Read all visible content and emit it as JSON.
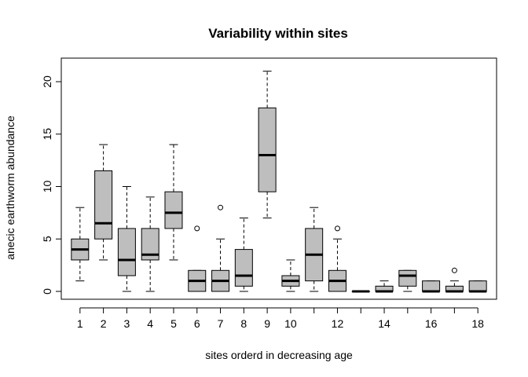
{
  "chart_data": {
    "type": "boxplot",
    "title": "Variability within sites",
    "xlabel": "sites orderd in decreasing age",
    "ylabel": "anecic earthworm abundance",
    "ylim": [
      -1,
      22.5
    ],
    "y_ticks": [
      0,
      5,
      10,
      15,
      20
    ],
    "x_tick_labels": [
      "1",
      "2",
      "3",
      "4",
      "5",
      "6",
      "7",
      "8",
      "9",
      "10",
      "12",
      "14",
      "16",
      "18"
    ],
    "x_tick_positions": [
      1,
      2,
      3,
      4,
      5,
      6,
      7,
      8,
      9,
      10,
      12,
      14,
      16,
      18
    ],
    "box_fill": "#bebebe",
    "boxes": [
      {
        "site": 1,
        "whisker_low": 1,
        "q1": 3,
        "median": 4,
        "q3": 5,
        "whisker_high": 8,
        "outliers": []
      },
      {
        "site": 2,
        "whisker_low": 3,
        "q1": 5,
        "median": 6.5,
        "q3": 11.5,
        "whisker_high": 14,
        "outliers": []
      },
      {
        "site": 3,
        "whisker_low": 0,
        "q1": 1.5,
        "median": 3,
        "q3": 6,
        "whisker_high": 10,
        "outliers": []
      },
      {
        "site": 4,
        "whisker_low": 0,
        "q1": 3,
        "median": 3.5,
        "q3": 6,
        "whisker_high": 9,
        "outliers": []
      },
      {
        "site": 5,
        "whisker_low": 3,
        "q1": 6,
        "median": 7.5,
        "q3": 9.5,
        "whisker_high": 14,
        "outliers": []
      },
      {
        "site": 6,
        "whisker_low": 0,
        "q1": 0,
        "median": 1,
        "q3": 2,
        "whisker_high": 2,
        "outliers": [
          6
        ]
      },
      {
        "site": 7,
        "whisker_low": 0,
        "q1": 0,
        "median": 1,
        "q3": 2,
        "whisker_high": 5,
        "outliers": [
          8
        ]
      },
      {
        "site": 8,
        "whisker_low": 0,
        "q1": 0.5,
        "median": 1.5,
        "q3": 4,
        "whisker_high": 7,
        "outliers": []
      },
      {
        "site": 9,
        "whisker_low": 7,
        "q1": 9.5,
        "median": 13,
        "q3": 17.5,
        "whisker_high": 21,
        "outliers": []
      },
      {
        "site": 10,
        "whisker_low": 0,
        "q1": 0.5,
        "median": 1,
        "q3": 1.5,
        "whisker_high": 3,
        "outliers": []
      },
      {
        "site": 11,
        "whisker_low": 0,
        "q1": 1,
        "median": 3.5,
        "q3": 6,
        "whisker_high": 8,
        "outliers": []
      },
      {
        "site": 12,
        "whisker_low": 0,
        "q1": 0,
        "median": 1,
        "q3": 2,
        "whisker_high": 5,
        "outliers": [
          6
        ]
      },
      {
        "site": 13,
        "whisker_low": 0,
        "q1": 0,
        "median": 0,
        "q3": 0,
        "whisker_high": 0,
        "outliers": []
      },
      {
        "site": 14,
        "whisker_low": 0,
        "q1": 0,
        "median": 0,
        "q3": 0.5,
        "whisker_high": 1,
        "outliers": []
      },
      {
        "site": 15,
        "whisker_low": 0,
        "q1": 0.5,
        "median": 1.5,
        "q3": 2,
        "whisker_high": 2,
        "outliers": []
      },
      {
        "site": 16,
        "whisker_low": 0,
        "q1": 0,
        "median": 0,
        "q3": 1,
        "whisker_high": 1,
        "outliers": []
      },
      {
        "site": 17,
        "whisker_low": 0,
        "q1": 0,
        "median": 0,
        "q3": 0.5,
        "whisker_high": 1,
        "outliers": [
          2
        ]
      },
      {
        "site": 18,
        "whisker_low": 0,
        "q1": 0,
        "median": 0,
        "q3": 1,
        "whisker_high": 1,
        "outliers": []
      }
    ],
    "grid": false,
    "legend": "none"
  }
}
